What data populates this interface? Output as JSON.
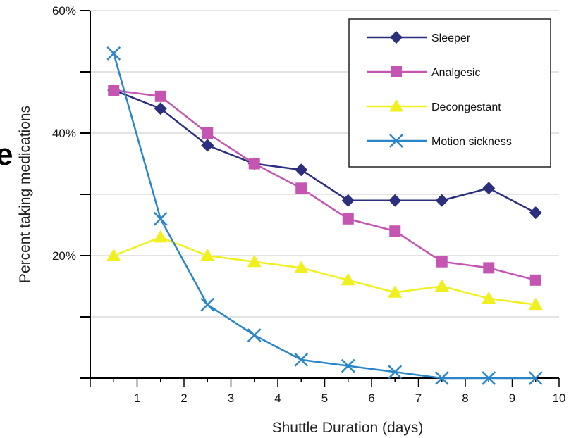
{
  "clipped_text": "e",
  "chart_data": {
    "type": "line",
    "title": "",
    "xlabel": "Shuttle Duration (days)",
    "ylabel": "Percent taking medications",
    "xlim": [
      0,
      10
    ],
    "ylim": [
      0,
      60
    ],
    "x_ticks": [
      "1",
      "2",
      "3",
      "4",
      "5",
      "6",
      "7",
      "8",
      "9",
      "10"
    ],
    "y_ticks": [
      {
        "value": 20,
        "label": "20%"
      },
      {
        "value": 40,
        "label": "40%"
      },
      {
        "value": 60,
        "label": "60%"
      }
    ],
    "grid": "horizontal every 10%",
    "legend_position": "top-right",
    "x": [
      0.5,
      1.5,
      2.5,
      3.5,
      4.5,
      5.5,
      6.5,
      7.5,
      8.5,
      9.5
    ],
    "series": [
      {
        "name": "Sleeper",
        "color": "#2b2f7e",
        "marker": "diamond",
        "values": [
          47,
          44,
          38,
          35,
          34,
          29,
          29,
          29,
          31,
          27
        ]
      },
      {
        "name": "Analgesic",
        "color": "#c455b0",
        "marker": "square",
        "values": [
          47,
          46,
          40,
          35,
          31,
          26,
          24,
          19,
          18,
          16
        ]
      },
      {
        "name": "Decongestant",
        "color": "#f0f01e",
        "marker": "triangle",
        "values": [
          20,
          23,
          20,
          19,
          18,
          16,
          14,
          15,
          13,
          12
        ]
      },
      {
        "name": "Motion sickness",
        "color": "#2a86c8",
        "marker": "x",
        "values": [
          53,
          26,
          12,
          7,
          3,
          2,
          1,
          0,
          0,
          0
        ]
      }
    ]
  }
}
